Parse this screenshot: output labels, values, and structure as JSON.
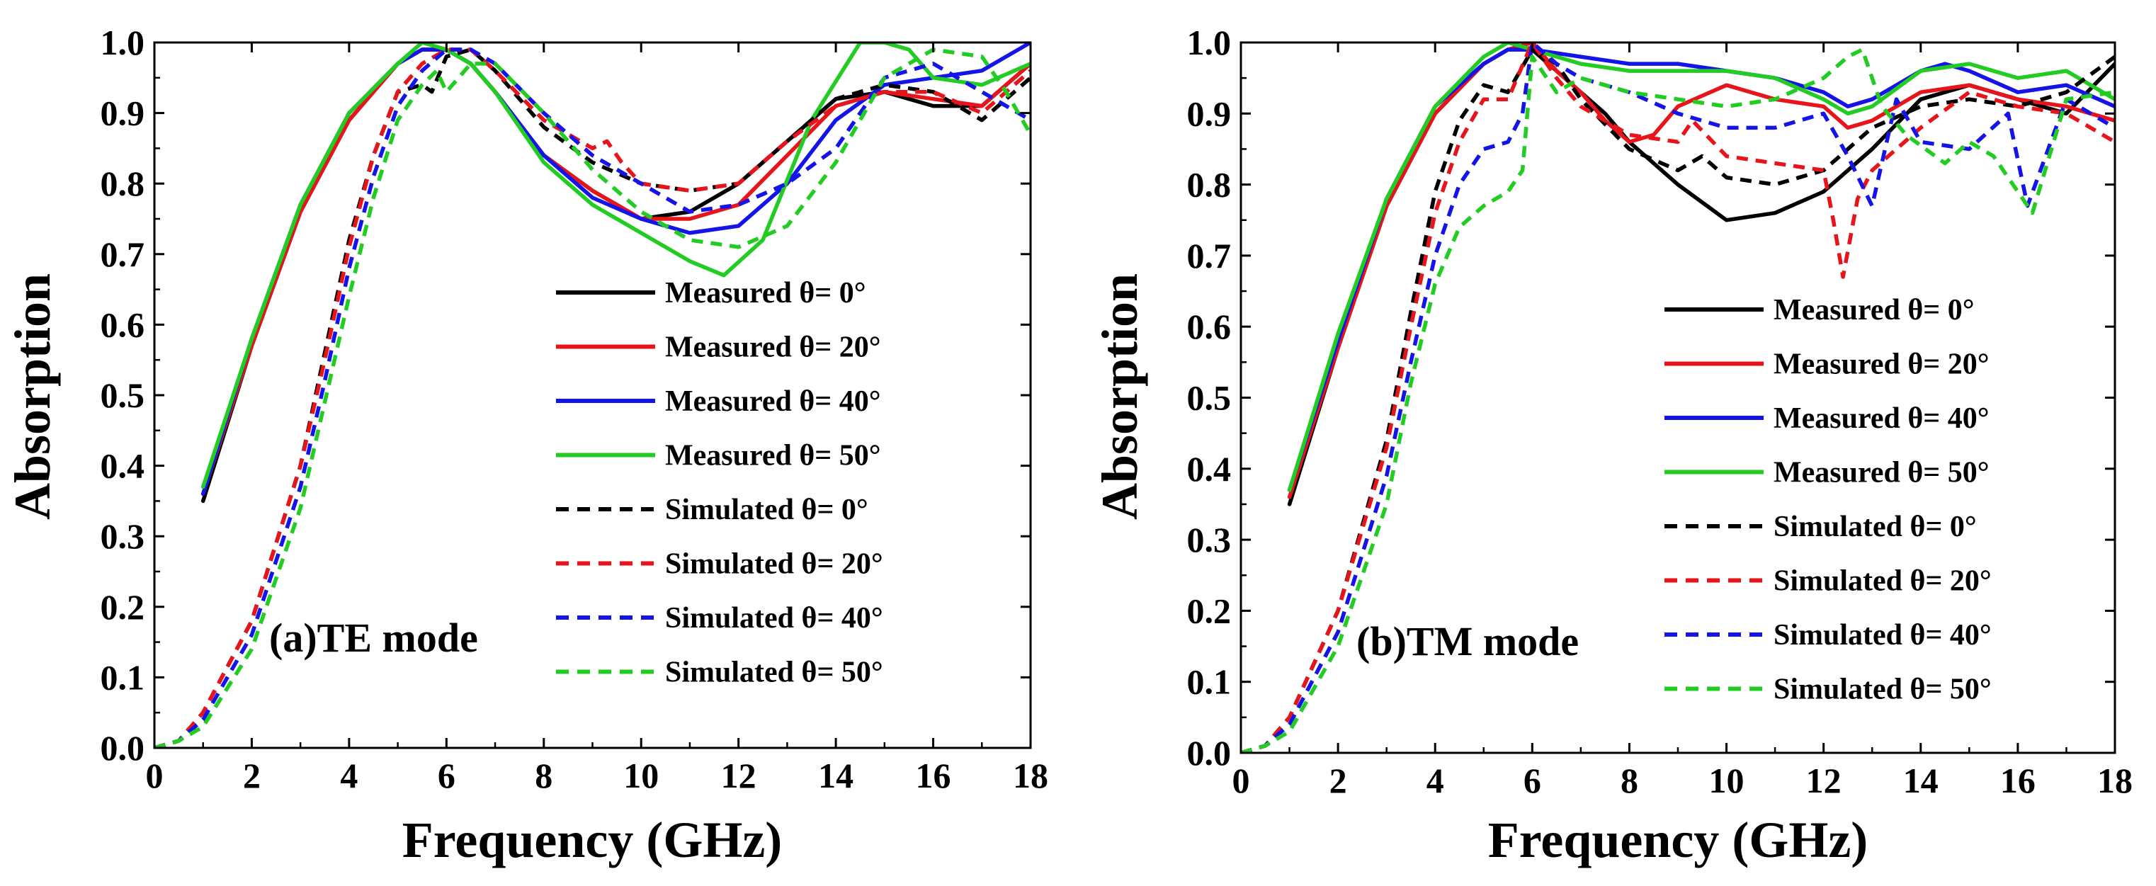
{
  "chart_data": [
    {
      "type": "line",
      "panel_label": "(a)TE mode",
      "xlabel": "Frequency (GHz)",
      "ylabel": "Absorption",
      "xlim": [
        0,
        18
      ],
      "ylim": [
        0.0,
        1.0
      ],
      "xticks": [
        "0",
        "2",
        "4",
        "6",
        "8",
        "10",
        "12",
        "14",
        "16",
        "18"
      ],
      "yticks": [
        "0.0",
        "0.1",
        "0.2",
        "0.3",
        "0.4",
        "0.5",
        "0.6",
        "0.7",
        "0.8",
        "0.9",
        "1.0"
      ],
      "legend_position": "center-right",
      "series": [
        {
          "name": "Measured θ= 0°",
          "color": "#000000",
          "dash": false,
          "x": [
            1,
            2,
            3,
            4,
            5,
            5.5,
            6,
            6.5,
            7,
            8,
            9,
            10,
            11,
            12,
            13,
            14,
            15,
            16,
            17,
            18
          ],
          "y": [
            0.35,
            0.57,
            0.76,
            0.89,
            0.97,
            0.99,
            0.99,
            0.97,
            0.93,
            0.84,
            0.79,
            0.75,
            0.76,
            0.8,
            0.86,
            0.92,
            0.93,
            0.91,
            0.91,
            0.97
          ]
        },
        {
          "name": "Measured θ= 20°",
          "color": "#e8141b",
          "dash": false,
          "x": [
            1,
            2,
            3,
            4,
            5,
            5.5,
            6,
            6.5,
            7,
            8,
            9,
            10,
            11,
            12,
            13,
            14,
            15,
            16,
            17,
            18
          ],
          "y": [
            0.36,
            0.57,
            0.76,
            0.89,
            0.97,
            0.99,
            0.99,
            0.97,
            0.93,
            0.84,
            0.79,
            0.75,
            0.75,
            0.77,
            0.84,
            0.91,
            0.93,
            0.92,
            0.91,
            0.97
          ]
        },
        {
          "name": "Measured θ= 40°",
          "color": "#1414e8",
          "dash": false,
          "x": [
            1,
            2,
            3,
            4,
            5,
            5.5,
            6,
            6.5,
            7,
            8,
            9,
            10,
            11,
            12,
            13,
            14,
            15,
            16,
            17,
            18
          ],
          "y": [
            0.36,
            0.58,
            0.77,
            0.9,
            0.97,
            0.99,
            0.99,
            0.97,
            0.93,
            0.84,
            0.78,
            0.75,
            0.73,
            0.74,
            0.8,
            0.89,
            0.94,
            0.95,
            0.96,
            1.0
          ]
        },
        {
          "name": "Measured θ= 50°",
          "color": "#22cc22",
          "dash": false,
          "x": [
            1,
            2,
            3,
            4,
            5,
            5.5,
            6,
            6.5,
            7,
            8,
            9,
            10,
            11,
            11.7,
            12.5,
            13.5,
            14.5,
            15,
            15.5,
            16,
            17,
            18
          ],
          "y": [
            0.37,
            0.58,
            0.77,
            0.9,
            0.97,
            1.0,
            0.99,
            0.97,
            0.93,
            0.83,
            0.77,
            0.73,
            0.69,
            0.67,
            0.72,
            0.89,
            1.0,
            1.0,
            0.99,
            0.95,
            0.94,
            0.97
          ]
        },
        {
          "name": "Simulated θ= 0°",
          "color": "#000000",
          "dash": true,
          "x": [
            0,
            0.5,
            1,
            2,
            3,
            3.5,
            4,
            4.5,
            5,
            5.5,
            5.7,
            6,
            6.5,
            7,
            8,
            9,
            10,
            11,
            12,
            13,
            14,
            15,
            16,
            17,
            18
          ],
          "y": [
            0.0,
            0.01,
            0.05,
            0.18,
            0.4,
            0.56,
            0.72,
            0.84,
            0.93,
            0.94,
            0.93,
            0.98,
            0.99,
            0.96,
            0.88,
            0.83,
            0.8,
            0.79,
            0.8,
            0.86,
            0.92,
            0.94,
            0.93,
            0.89,
            0.95
          ]
        },
        {
          "name": "Simulated θ= 20°",
          "color": "#e8141b",
          "dash": true,
          "x": [
            0,
            0.5,
            1,
            2,
            3,
            3.5,
            4,
            4.5,
            5,
            5.5,
            6,
            6.5,
            7,
            8,
            9,
            9.3,
            9.6,
            10,
            11,
            12,
            13,
            14,
            15,
            16,
            17,
            18
          ],
          "y": [
            0.0,
            0.01,
            0.05,
            0.18,
            0.4,
            0.55,
            0.71,
            0.84,
            0.93,
            0.97,
            0.99,
            0.99,
            0.96,
            0.89,
            0.85,
            0.86,
            0.83,
            0.8,
            0.79,
            0.8,
            0.86,
            0.91,
            0.93,
            0.93,
            0.9,
            0.96
          ]
        },
        {
          "name": "Simulated θ= 40°",
          "color": "#1414e8",
          "dash": true,
          "x": [
            0,
            0.5,
            1,
            2,
            3,
            3.5,
            4,
            4.5,
            5,
            5.5,
            6,
            6.5,
            7,
            8,
            9,
            10,
            11,
            12,
            13,
            14,
            15,
            16,
            17,
            18
          ],
          "y": [
            0.0,
            0.01,
            0.04,
            0.16,
            0.37,
            0.52,
            0.68,
            0.81,
            0.91,
            0.96,
            0.99,
            0.99,
            0.97,
            0.9,
            0.84,
            0.8,
            0.76,
            0.77,
            0.8,
            0.85,
            0.95,
            0.97,
            0.93,
            0.89
          ]
        },
        {
          "name": "Simulated θ= 50°",
          "color": "#22cc22",
          "dash": true,
          "x": [
            0,
            0.5,
            1,
            2,
            3,
            3.5,
            4,
            4.5,
            5,
            5.5,
            5.8,
            6,
            6.5,
            7,
            8,
            9,
            10,
            11,
            12,
            13,
            14,
            15,
            16,
            17,
            17.5,
            18
          ],
          "y": [
            0.0,
            0.01,
            0.03,
            0.14,
            0.34,
            0.49,
            0.64,
            0.78,
            0.89,
            0.94,
            0.96,
            0.93,
            0.97,
            0.97,
            0.9,
            0.82,
            0.76,
            0.72,
            0.71,
            0.74,
            0.83,
            0.95,
            0.99,
            0.98,
            0.93,
            0.87
          ]
        }
      ]
    },
    {
      "type": "line",
      "panel_label": "(b)TM mode",
      "xlabel": "Frequency (GHz)",
      "ylabel": "Absorption",
      "xlim": [
        0,
        18
      ],
      "ylim": [
        0.0,
        1.0
      ],
      "xticks": [
        "0",
        "2",
        "4",
        "6",
        "8",
        "10",
        "12",
        "14",
        "16",
        "18"
      ],
      "yticks": [
        "0.0",
        "0.1",
        "0.2",
        "0.3",
        "0.4",
        "0.5",
        "0.6",
        "0.7",
        "0.8",
        "0.9",
        "1.0"
      ],
      "legend_position": "lower-right",
      "series": [
        {
          "name": "Measured θ= 0°",
          "color": "#000000",
          "dash": false,
          "x": [
            1,
            2,
            3,
            4,
            5,
            5.5,
            6,
            6.5,
            7,
            7.5,
            8,
            9,
            10,
            11,
            12,
            13,
            14,
            15,
            16,
            17,
            18
          ],
          "y": [
            0.35,
            0.57,
            0.77,
            0.9,
            0.97,
            0.99,
            0.99,
            0.96,
            0.93,
            0.9,
            0.86,
            0.8,
            0.75,
            0.76,
            0.79,
            0.85,
            0.92,
            0.94,
            0.92,
            0.9,
            0.97
          ]
        },
        {
          "name": "Measured θ= 20°",
          "color": "#e8141b",
          "dash": false,
          "x": [
            1,
            2,
            3,
            4,
            5,
            5.5,
            6,
            6.5,
            7,
            7.5,
            8,
            8.5,
            9,
            10,
            11,
            12,
            12.5,
            13,
            14,
            15,
            16,
            17,
            18
          ],
          "y": [
            0.36,
            0.57,
            0.77,
            0.9,
            0.97,
            0.99,
            1.0,
            0.96,
            0.93,
            0.89,
            0.86,
            0.87,
            0.91,
            0.94,
            0.92,
            0.91,
            0.88,
            0.89,
            0.93,
            0.94,
            0.92,
            0.91,
            0.89
          ]
        },
        {
          "name": "Measured θ= 40°",
          "color": "#1414e8",
          "dash": false,
          "x": [
            1,
            2,
            3,
            4,
            5,
            5.5,
            6,
            7,
            8,
            9,
            10,
            11,
            12,
            12.5,
            13,
            14,
            14.5,
            15,
            16,
            17,
            18
          ],
          "y": [
            0.37,
            0.58,
            0.78,
            0.91,
            0.97,
            0.99,
            0.99,
            0.98,
            0.97,
            0.97,
            0.96,
            0.95,
            0.93,
            0.91,
            0.92,
            0.96,
            0.97,
            0.96,
            0.93,
            0.94,
            0.91
          ]
        },
        {
          "name": "Measured θ= 50°",
          "color": "#22cc22",
          "dash": false,
          "x": [
            1,
            2,
            3,
            4,
            5,
            5.5,
            6,
            7,
            8,
            9,
            10,
            11,
            12,
            12.5,
            13,
            14,
            15,
            16,
            17,
            18
          ],
          "y": [
            0.37,
            0.59,
            0.78,
            0.91,
            0.98,
            1.0,
            0.99,
            0.97,
            0.96,
            0.96,
            0.96,
            0.95,
            0.92,
            0.9,
            0.91,
            0.96,
            0.97,
            0.95,
            0.96,
            0.92
          ]
        },
        {
          "name": "Simulated θ= 0°",
          "color": "#000000",
          "dash": true,
          "x": [
            0,
            0.5,
            1,
            2,
            3,
            3.5,
            4,
            4.5,
            5,
            5.5,
            6,
            6.5,
            7,
            8,
            9,
            9.5,
            10,
            11,
            12,
            13,
            14,
            15,
            16,
            17,
            18
          ],
          "y": [
            0.0,
            0.01,
            0.05,
            0.2,
            0.44,
            0.62,
            0.79,
            0.89,
            0.94,
            0.93,
            0.99,
            0.97,
            0.92,
            0.85,
            0.82,
            0.84,
            0.81,
            0.8,
            0.82,
            0.88,
            0.91,
            0.92,
            0.91,
            0.93,
            0.98
          ]
        },
        {
          "name": "Simulated θ= 20°",
          "color": "#e8141b",
          "dash": true,
          "x": [
            0,
            0.5,
            1,
            2,
            3,
            3.5,
            4,
            4.5,
            5,
            5.5,
            6,
            6.5,
            7,
            8,
            9,
            9.3,
            10,
            11,
            12,
            12.2,
            12.4,
            12.7,
            13,
            14,
            15,
            16,
            17,
            18
          ],
          "y": [
            0.0,
            0.01,
            0.05,
            0.2,
            0.43,
            0.6,
            0.76,
            0.86,
            0.92,
            0.92,
            1.0,
            0.95,
            0.91,
            0.87,
            0.86,
            0.89,
            0.84,
            0.83,
            0.82,
            0.75,
            0.67,
            0.78,
            0.82,
            0.88,
            0.93,
            0.91,
            0.9,
            0.86
          ]
        },
        {
          "name": "Simulated θ= 40°",
          "color": "#1414e8",
          "dash": true,
          "x": [
            0,
            0.5,
            1,
            2,
            3,
            3.5,
            4,
            4.5,
            5,
            5.5,
            5.8,
            6,
            6.5,
            7,
            8,
            9,
            10,
            11,
            12,
            12.5,
            13,
            13.5,
            14,
            15,
            15.8,
            16.2,
            17,
            18
          ],
          "y": [
            0.0,
            0.01,
            0.04,
            0.17,
            0.39,
            0.55,
            0.7,
            0.8,
            0.85,
            0.86,
            0.9,
            1.0,
            0.97,
            0.95,
            0.93,
            0.9,
            0.88,
            0.88,
            0.9,
            0.84,
            0.77,
            0.92,
            0.86,
            0.85,
            0.9,
            0.77,
            0.92,
            0.88
          ]
        },
        {
          "name": "Simulated θ= 50°",
          "color": "#22cc22",
          "dash": true,
          "x": [
            0,
            0.5,
            1,
            2,
            3,
            3.5,
            4,
            4.5,
            5,
            5.5,
            5.8,
            6,
            6.5,
            7,
            8,
            9,
            10,
            11,
            12,
            12.5,
            12.8,
            13.2,
            13.7,
            14.5,
            15,
            15.5,
            16,
            16.3,
            17,
            18
          ],
          "y": [
            0.0,
            0.01,
            0.03,
            0.15,
            0.35,
            0.52,
            0.66,
            0.74,
            0.77,
            0.79,
            0.82,
            0.98,
            0.93,
            0.95,
            0.93,
            0.92,
            0.91,
            0.92,
            0.95,
            0.98,
            0.99,
            0.91,
            0.87,
            0.83,
            0.86,
            0.84,
            0.79,
            0.76,
            0.92,
            0.93
          ]
        }
      ]
    }
  ]
}
